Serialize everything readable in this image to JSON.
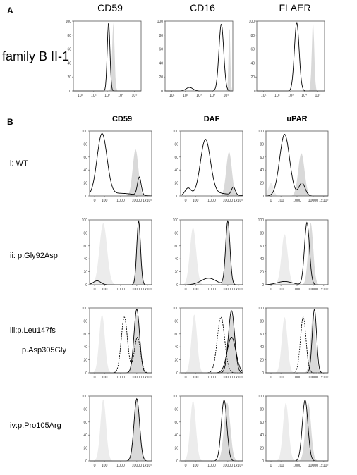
{
  "panel_a": {
    "label": "A",
    "columns": [
      "CD59",
      "CD16",
      "FLAER"
    ],
    "row_label": "family B II-1",
    "y_ticks": [
      "100",
      "80",
      "60",
      "40",
      "20",
      "0"
    ],
    "x_ticks": [
      "10¹",
      "10²",
      "10³",
      "10⁴",
      "10⁵"
    ]
  },
  "panel_b": {
    "label": "B",
    "columns": [
      "CD59",
      "DAF",
      "uPAR"
    ],
    "rows": [
      {
        "lines": [
          "i: WT"
        ]
      },
      {
        "lines": [
          "ii: p.Gly92Asp"
        ]
      },
      {
        "lines": [
          "iii:p.Leu147fs",
          "p.Asp305Gly"
        ]
      },
      {
        "lines": [
          "iv:p.Pro105Arg"
        ]
      }
    ],
    "y_ticks": [
      "100",
      "80",
      "60",
      "40",
      "20",
      "0"
    ],
    "x_ticks": [
      "0",
      "100",
      "1000",
      "10000",
      "1x10⁵"
    ]
  }
}
